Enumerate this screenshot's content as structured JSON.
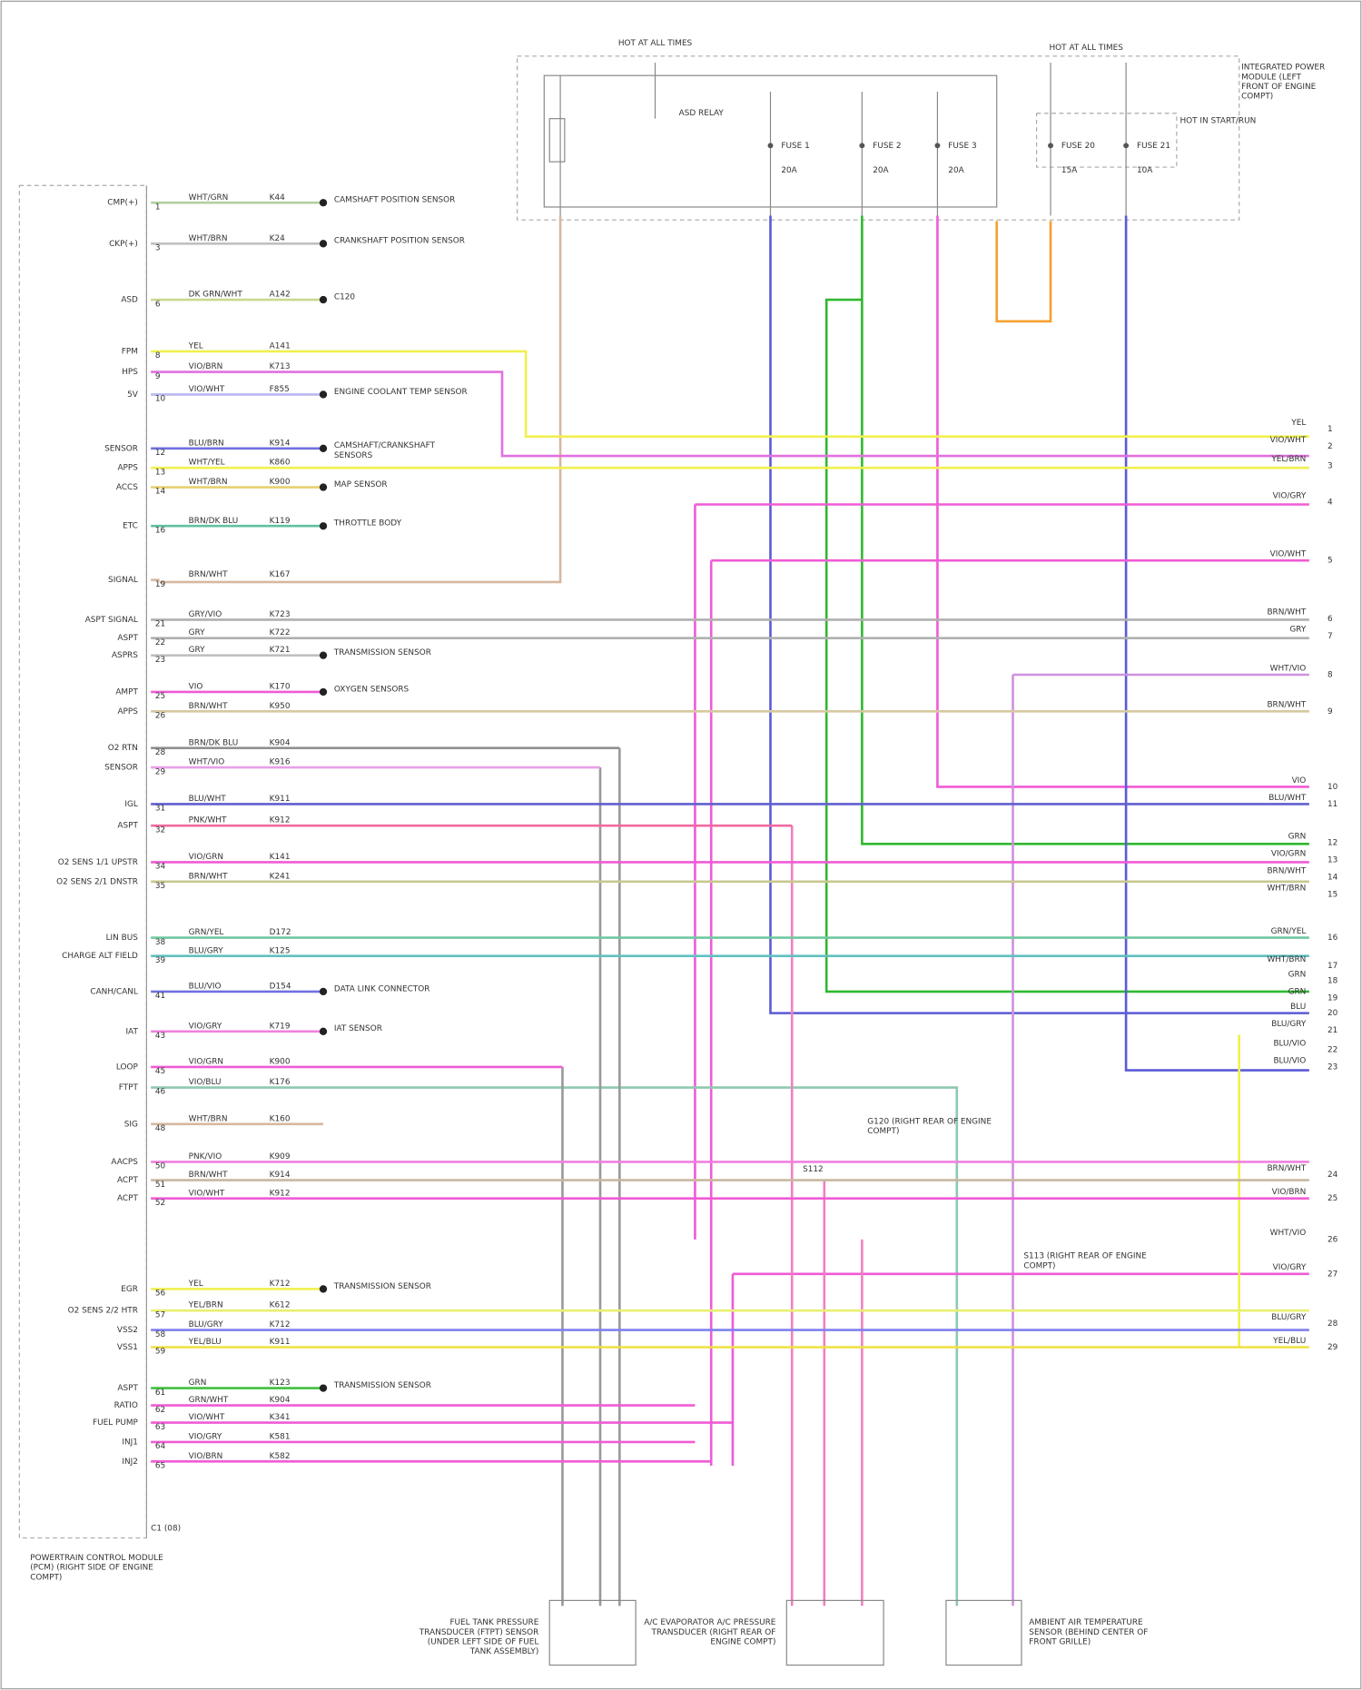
{
  "header": {
    "hot_left": "HOT AT ALL TIMES",
    "hot_right": "HOT AT ALL TIMES",
    "ipm": "INTEGRATED POWER MODULE (LEFT FRONT OF ENGINE COMPT)",
    "relay": "ASD RELAY",
    "note": "HOT IN START/RUN",
    "fuses": [
      {
        "name": "FUSE 1",
        "rating": "20A"
      },
      {
        "name": "FUSE 2",
        "rating": "20A"
      },
      {
        "name": "FUSE 3",
        "rating": "20A"
      },
      {
        "name": "FUSE 20",
        "rating": "15A"
      },
      {
        "name": "FUSE 21",
        "rating": "10A"
      }
    ]
  },
  "pcm": {
    "title": "POWERTRAIN CONTROL MODULE (PCM) (RIGHT SIDE OF ENGINE COMPT)",
    "connector": "C1 (08)",
    "pins": [
      {
        "name": "CMP(+)",
        "pin": "1",
        "wire": "WHT/GRN",
        "circuit": "K44",
        "to": "CAMSHAFT POSITION SENSOR"
      },
      {
        "name": "CKP(+)",
        "pin": "3",
        "wire": "WHT/BRN",
        "circuit": "K24",
        "to": "CRANKSHAFT POSITION SENSOR"
      },
      {
        "name": "ASD",
        "pin": "6",
        "wire": "DK GRN/WHT",
        "circuit": "A142",
        "to": "C120"
      },
      {
        "name": "FPM",
        "pin": "8",
        "wire": "YEL",
        "circuit": "A141",
        "to": null
      },
      {
        "name": "HPS",
        "pin": "9",
        "wire": "VIO/BRN",
        "circuit": "K713",
        "to": null
      },
      {
        "name": "5V",
        "pin": "10",
        "wire": "VIO/WHT",
        "circuit": "F855",
        "to": "ENGINE COOLANT TEMP SENSOR"
      },
      {
        "name": "SENSOR",
        "pin": "12",
        "wire": "BLU/BRN",
        "circuit": "K914",
        "to": "CAMSHAFT/CRANKSHAFT SENSORS"
      },
      {
        "name": "APPS",
        "pin": "13",
        "wire": "WHT/YEL",
        "circuit": "K860",
        "to": null
      },
      {
        "name": "ACCS",
        "pin": "14",
        "wire": "WHT/BRN",
        "circuit": "K900",
        "to": "MAP SENSOR"
      },
      {
        "name": "ETC",
        "pin": "16",
        "wire": "BRN/DK BLU",
        "circuit": "K119",
        "to": "THROTTLE BODY"
      },
      {
        "name": "SIGNAL",
        "pin": "19",
        "wire": "BRN/WHT",
        "circuit": "K167",
        "to": null
      },
      {
        "name": "ASPT SIGNAL",
        "pin": "21",
        "wire": "GRY/VIO",
        "circuit": "K723",
        "to": null
      },
      {
        "name": "ASPT",
        "pin": "22",
        "wire": "GRY",
        "circuit": "K722",
        "to": null
      },
      {
        "name": "ASPRS",
        "pin": "23",
        "wire": "GRY",
        "circuit": "K721",
        "to": "TRANSMISSION SENSOR"
      },
      {
        "name": "AMPT",
        "pin": "25",
        "wire": "VIO",
        "circuit": "K170",
        "to": "OXYGEN SENSORS"
      },
      {
        "name": "APPS",
        "pin": "26",
        "wire": "BRN/WHT",
        "circuit": "K950",
        "to": null
      },
      {
        "name": "O2 RTN",
        "pin": "28",
        "wire": "BRN/DK BLU",
        "circuit": "K904",
        "to": null
      },
      {
        "name": "SENSOR",
        "pin": "29",
        "wire": "WHT/VIO",
        "circuit": "K916",
        "to": null
      },
      {
        "name": "IGL",
        "pin": "31",
        "wire": "BLU/WHT",
        "circuit": "K911",
        "to": null
      },
      {
        "name": "ASPT",
        "pin": "32",
        "wire": "PNK/WHT",
        "circuit": "K912",
        "to": null
      },
      {
        "name": "O2 SENS 1/1 UPSTR",
        "pin": "34",
        "wire": "VIO/GRN",
        "circuit": "K141",
        "to": null
      },
      {
        "name": "O2 SENS 2/1 DNSTR",
        "pin": "35",
        "wire": "BRN/WHT",
        "circuit": "K241",
        "to": null
      },
      {
        "name": "LIN BUS",
        "pin": "38",
        "wire": "GRN/YEL",
        "circuit": "D172",
        "to": null
      },
      {
        "name": "CHARGE ALT FIELD",
        "pin": "39",
        "wire": "BLU/GRY",
        "circuit": "K125",
        "to": null
      },
      {
        "name": "CANH/CANL",
        "pin": "41",
        "wire": "BLU/VIO",
        "circuit": "D154",
        "to": "DATA LINK CONNECTOR"
      },
      {
        "name": "IAT",
        "pin": "43",
        "wire": "VIO/GRY",
        "circuit": "K719",
        "to": "IAT SENSOR"
      },
      {
        "name": "LOOP",
        "pin": "45",
        "wire": "VIO/GRN",
        "circuit": "K900",
        "to": null
      },
      {
        "name": "FTPT",
        "pin": "46",
        "wire": "VIO/BLU",
        "circuit": "K176",
        "to": null
      },
      {
        "name": "SIG",
        "pin": "48",
        "wire": "WHT/BRN",
        "circuit": "K160",
        "to": null
      },
      {
        "name": "AACPS",
        "pin": "50",
        "wire": "PNK/VIO",
        "circuit": "K909",
        "to": null
      },
      {
        "name": "ACPT",
        "pin": "51",
        "wire": "BRN/WHT",
        "circuit": "K914",
        "to": null
      },
      {
        "name": "ACPT",
        "pin": "52",
        "wire": "VIO/WHT",
        "circuit": "K912",
        "to": null
      },
      {
        "name": "EGR",
        "pin": "56",
        "wire": "YEL",
        "circuit": "K712",
        "to": "TRANSMISSION SENSOR"
      },
      {
        "name": "O2 SENS 2/2 HTR",
        "pin": "57",
        "wire": "YEL/BRN",
        "circuit": "K612",
        "to": null
      },
      {
        "name": "VSS2",
        "pin": "58",
        "wire": "BLU/GRY",
        "circuit": "K712",
        "to": null
      },
      {
        "name": "VSS1",
        "pin": "59",
        "wire": "YEL/BLU",
        "circuit": "K911",
        "to": null
      },
      {
        "name": "ASPT",
        "pin": "61",
        "wire": "GRN",
        "circuit": "K123",
        "to": "TRANSMISSION SENSOR"
      },
      {
        "name": "RATIO",
        "pin": "62",
        "wire": "GRN/WHT",
        "circuit": "K904",
        "to": null
      },
      {
        "name": "FUEL PUMP",
        "pin": "63",
        "wire": "VIO/WHT",
        "circuit": "K341",
        "to": null
      },
      {
        "name": "INJ1",
        "pin": "64",
        "wire": "VIO/GRY",
        "circuit": "K581",
        "to": null
      },
      {
        "name": "INJ2",
        "pin": "65",
        "wire": "VIO/BRN",
        "circuit": "K582",
        "to": null
      }
    ]
  },
  "right_connector": {
    "pins": [
      {
        "wire": "YEL",
        "pin": "1"
      },
      {
        "wire": "VIO/WHT",
        "pin": "2"
      },
      {
        "wire": "YEL/BRN",
        "pin": "3"
      },
      {
        "wire": "VIO/GRY",
        "pin": "4"
      },
      {
        "wire": "VIO/WHT",
        "pin": "5"
      },
      {
        "wire": "BRN/WHT",
        "pin": "6"
      },
      {
        "wire": "GRY",
        "pin": "7"
      },
      {
        "wire": "WHT/VIO",
        "pin": "8"
      },
      {
        "wire": "BRN/WHT",
        "pin": "9"
      },
      {
        "wire": "VIO",
        "pin": "10"
      },
      {
        "wire": "BLU/WHT",
        "pin": "11"
      },
      {
        "wire": "GRN",
        "pin": "12"
      },
      {
        "wire": "VIO/GRN",
        "pin": "13"
      },
      {
        "wire": "BRN/WHT",
        "pin": "14"
      },
      {
        "wire": "WHT/BRN",
        "pin": "15"
      },
      {
        "wire": "GRN/YEL",
        "pin": "16"
      },
      {
        "wire": "WHT/BRN",
        "pin": "17"
      },
      {
        "wire": "GRN",
        "pin": "18"
      },
      {
        "wire": "GRN",
        "pin": "19"
      },
      {
        "wire": "BLU",
        "pin": "20"
      },
      {
        "wire": "BLU/GRY",
        "pin": "21"
      },
      {
        "wire": "BLU/VIO",
        "pin": "22"
      },
      {
        "wire": "BLU/VIO",
        "pin": "23"
      },
      {
        "wire": "BRN/WHT",
        "pin": "24"
      },
      {
        "wire": "VIO/BRN",
        "pin": "25"
      },
      {
        "wire": "WHT/VIO",
        "pin": "26"
      },
      {
        "wire": "VIO/GRY",
        "pin": "27"
      },
      {
        "wire": "BLU/GRY",
        "pin": "28"
      },
      {
        "wire": "YEL/BLU",
        "pin": "29"
      }
    ]
  },
  "components": [
    "FUEL TANK PRESSURE TRANSDUCER (FTPT) SENSOR (UNDER LEFT SIDE OF FUEL TANK ASSEMBLY)",
    "A/C EVAPORATOR A/C PRESSURE TRANSDUCER (RIGHT REAR OF ENGINE COMPT)",
    "AMBIENT AIR TEMPERATURE SENSOR (BEHIND CENTER OF FRONT GRILLE)"
  ],
  "splices": [
    "S112",
    "G120 (RIGHT REAR OF ENGINE COMPT)",
    "S113 (RIGHT REAR OF ENGINE COMPT)"
  ]
}
